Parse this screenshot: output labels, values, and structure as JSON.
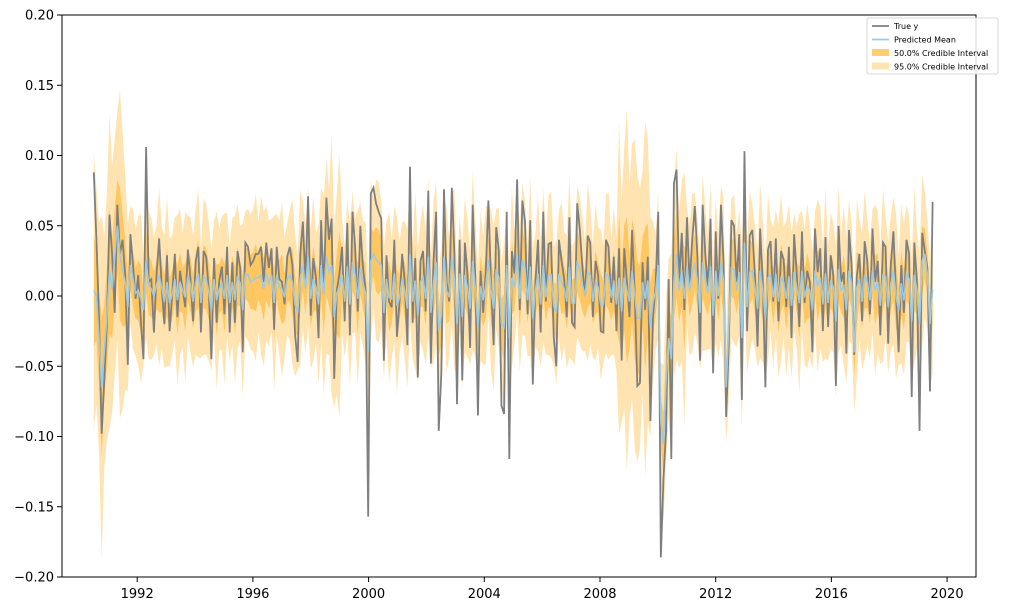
{
  "chart_data": {
    "type": "line",
    "title": "",
    "xlabel": "",
    "ylabel": "",
    "xlim": [
      1989.4,
      2021.0
    ],
    "ylim": [
      -0.2,
      0.2
    ],
    "x_ticks": [
      1992,
      1996,
      2000,
      2004,
      2008,
      2012,
      2016,
      2020
    ],
    "x_tick_labels": [
      "1992",
      "1996",
      "2000",
      "2004",
      "2008",
      "2012",
      "2016",
      "2020"
    ],
    "y_ticks": [
      -0.2,
      -0.15,
      -0.1,
      -0.05,
      0.0,
      0.05,
      0.1,
      0.15,
      0.2
    ],
    "y_tick_labels": [
      "−0.20",
      "−0.15",
      "−0.10",
      "−0.05",
      "0.00",
      "0.05",
      "0.10",
      "0.15",
      "0.20"
    ],
    "grid": false,
    "legend_position": "top-right",
    "legend": [
      {
        "label": "True y",
        "kind": "line",
        "color": "#7f7f7f"
      },
      {
        "label": "Predicted Mean",
        "kind": "line",
        "color": "#9ecae1"
      },
      {
        "label": "50.0% Credible Interval",
        "kind": "patch",
        "color": "#ffa500",
        "opacity": 0.55
      },
      {
        "label": "95.0% Credible Interval",
        "kind": "patch",
        "color": "#ffa500",
        "opacity": 0.3
      }
    ],
    "x_start": 1990.5,
    "x_end": 2019.5,
    "series": [
      {
        "name": "True y",
        "role": "true",
        "color": "#7f7f7f",
        "values": [
          0.088,
          0.04,
          -0.015,
          -0.098,
          -0.06,
          -0.02,
          0.058,
          0.03,
          -0.012,
          0.065,
          0.03,
          0.04,
          0.015,
          -0.049,
          0.044,
          0.022,
          -0.002,
          0.015,
          -0.018,
          -0.045,
          0.106,
          0.01,
          0.012,
          -0.026,
          0.015,
          0.041,
          0.006,
          -0.02,
          0.029,
          -0.025,
          0.001,
          0.03,
          -0.015,
          0.018,
          0.005,
          -0.008,
          0.033,
          0.012,
          -0.018,
          0.025,
          0.035,
          -0.026,
          0.032,
          0.028,
          0.004,
          -0.045,
          0.027,
          -0.019,
          0.011,
          0.021,
          -0.013,
          0.035,
          -0.026,
          0.024,
          -0.019,
          0.032,
          0.02,
          -0.04,
          0.038,
          0.035,
          0.022,
          0.025,
          0.03,
          0.03,
          0.035,
          0.01,
          0.038,
          0.02,
          0.034,
          -0.024,
          0.035,
          0.012,
          0.01,
          -0.006,
          0.028,
          0.035,
          0.022,
          -0.027,
          -0.047,
          0.03,
          0.053,
          0.01,
          0.071,
          -0.014,
          0.027,
          0.013,
          -0.03,
          0.054,
          0.002,
          0.07,
          0.04,
          0.055,
          -0.059,
          0.004,
          0.016,
          0.035,
          -0.018,
          0.052,
          -0.028,
          0.06,
          0.035,
          -0.011,
          0.05,
          0.02,
          0.005,
          -0.157,
          0.073,
          0.077,
          0.066,
          0.06,
          0.055,
          -0.046,
          0.029,
          -0.004,
          -0.008,
          0.04,
          -0.029,
          -0.004,
          0.03,
          0.01,
          -0.035,
          0.092,
          -0.019,
          0.027,
          -0.058,
          0.025,
          0.032,
          -0.011,
          0.075,
          -0.048,
          0.025,
          0.06,
          -0.096,
          -0.055,
          0.076,
          0.01,
          -0.004,
          0.077,
          0.03,
          -0.077,
          0.04,
          -0.06,
          0.038,
          0.015,
          -0.037,
          0.065,
          0.012,
          -0.085,
          0.018,
          -0.012,
          0.017,
          0.068,
          0.01,
          -0.035,
          0.049,
          0.032,
          -0.078,
          -0.084,
          0.06,
          -0.116,
          0.032,
          0.016,
          0.083,
          -0.01,
          0.068,
          0.053,
          -0.013,
          0.054,
          -0.063,
          0.01,
          0.04,
          -0.026,
          0.06,
          -0.004,
          0.037,
          0.038,
          -0.029,
          -0.05,
          0.04,
          0.025,
          0.012,
          -0.015,
          0.056,
          -0.019,
          -0.022,
          0.066,
          0.047,
          0.02,
          0.0,
          0.043,
          0.038,
          -0.015,
          0.025,
          0.015,
          -0.025,
          -0.026,
          0.04,
          0.035,
          -0.005,
          0.028,
          -0.025,
          0.034,
          -0.046,
          0.034,
          0.01,
          -0.015,
          0.047,
          0.002,
          -0.064,
          -0.062,
          0.024,
          -0.01,
          0.028,
          -0.089,
          -0.015,
          0.008,
          0.06,
          -0.186,
          -0.13,
          -0.096,
          0.012,
          -0.116,
          0.08,
          0.09,
          0.01,
          0.045,
          -0.01,
          0.056,
          0.009,
          0.04,
          0.064,
          0.028,
          -0.046,
          0.065,
          0.03,
          0.005,
          0.055,
          -0.055,
          0.046,
          -0.002,
          0.065,
          0.024,
          -0.086,
          -0.035,
          0.054,
          0.05,
          0.01,
          0.044,
          -0.074,
          0.103,
          -0.025,
          0.043,
          0.047,
          0.015,
          -0.036,
          0.048,
          0.01,
          -0.065,
          0.033,
          0.039,
          -0.004,
          0.041,
          -0.018,
          0.032,
          0.026,
          -0.008,
          0.035,
          -0.03,
          0.044,
          0.016,
          -0.022,
          0.046,
          -0.005,
          0.018,
          0.01,
          -0.04,
          0.048,
          0.017,
          0.034,
          -0.025,
          0.042,
          -0.022,
          0.029,
          0.014,
          -0.064,
          0.05,
          0.01,
          0.017,
          -0.041,
          0.047,
          0.022,
          -0.042,
          0.014,
          0.03,
          -0.018,
          0.039,
          0.025,
          -0.013,
          0.048,
          0.01,
          0.025,
          -0.028,
          0.038,
          0.035,
          -0.034,
          0.022,
          0.046,
          0.0,
          -0.04,
          0.022,
          -0.012,
          0.04,
          0.03,
          -0.072,
          0.038,
          0.01,
          -0.096,
          0.045,
          0.032,
          0.02,
          -0.068,
          0.067
        ]
      },
      {
        "name": "Predicted Mean",
        "role": "mean",
        "color": "#9ecae1",
        "values": [
          0.004,
          0.0,
          -0.03,
          -0.065,
          -0.04,
          -0.015,
          0.018,
          0.005,
          0.028,
          0.05,
          0.03,
          0.018,
          0.01,
          -0.008,
          0.022,
          0.012,
          0.002,
          0.004,
          -0.002,
          -0.01,
          0.025,
          0.008,
          0.005,
          0.0,
          0.008,
          0.014,
          0.006,
          -0.004,
          0.01,
          -0.005,
          0.001,
          0.012,
          -0.003,
          0.01,
          0.004,
          -0.001,
          0.014,
          0.008,
          -0.004,
          0.01,
          0.016,
          -0.005,
          0.014,
          0.012,
          0.003,
          -0.01,
          0.012,
          -0.003,
          0.005,
          0.009,
          -0.002,
          0.015,
          -0.005,
          0.01,
          -0.003,
          0.014,
          0.009,
          -0.01,
          0.016,
          0.015,
          0.01,
          0.011,
          0.013,
          0.013,
          0.015,
          0.005,
          0.016,
          0.009,
          0.015,
          -0.005,
          0.015,
          0.006,
          0.005,
          -0.001,
          0.012,
          0.015,
          0.01,
          -0.006,
          -0.012,
          0.013,
          0.022,
          0.005,
          0.028,
          -0.002,
          0.012,
          0.006,
          -0.006,
          0.022,
          0.001,
          0.028,
          0.017,
          0.022,
          -0.015,
          0.002,
          0.007,
          0.015,
          -0.004,
          0.021,
          -0.006,
          0.024,
          0.015,
          -0.002,
          0.02,
          0.009,
          0.002,
          -0.04,
          0.025,
          0.03,
          0.026,
          0.024,
          0.022,
          -0.012,
          0.012,
          -0.001,
          -0.002,
          0.016,
          -0.007,
          -0.001,
          0.012,
          0.004,
          -0.009,
          0.03,
          -0.004,
          0.011,
          -0.014,
          0.01,
          0.013,
          -0.002,
          0.028,
          -0.012,
          0.01,
          0.024,
          -0.025,
          -0.014,
          0.028,
          0.004,
          -0.001,
          0.028,
          0.012,
          -0.02,
          0.016,
          -0.015,
          0.015,
          0.006,
          -0.009,
          0.025,
          0.005,
          -0.022,
          0.007,
          -0.003,
          0.007,
          0.026,
          0.004,
          -0.009,
          0.019,
          0.013,
          -0.02,
          -0.022,
          0.022,
          -0.03,
          0.013,
          0.006,
          0.03,
          -0.002,
          0.026,
          0.02,
          -0.003,
          0.021,
          -0.016,
          0.004,
          0.016,
          -0.006,
          0.022,
          -0.001,
          0.015,
          0.015,
          -0.007,
          -0.012,
          0.016,
          0.01,
          0.005,
          -0.004,
          0.021,
          -0.005,
          -0.005,
          0.025,
          0.018,
          0.008,
          0.0,
          0.017,
          0.015,
          -0.004,
          0.01,
          0.006,
          -0.006,
          -0.006,
          0.016,
          0.014,
          -0.001,
          0.011,
          -0.006,
          0.013,
          -0.011,
          0.013,
          0.004,
          -0.004,
          0.018,
          0.001,
          -0.016,
          -0.016,
          0.01,
          -0.002,
          0.011,
          -0.022,
          -0.004,
          0.003,
          0.022,
          -0.09,
          -0.105,
          -0.06,
          -0.03,
          -0.045,
          0.01,
          0.03,
          0.004,
          0.018,
          -0.002,
          0.021,
          0.004,
          0.016,
          0.024,
          0.011,
          -0.012,
          0.024,
          0.012,
          0.002,
          0.021,
          -0.014,
          0.018,
          0.0,
          0.024,
          0.01,
          -0.065,
          -0.02,
          0.02,
          0.019,
          0.004,
          0.017,
          -0.03,
          0.038,
          -0.008,
          0.017,
          0.018,
          0.006,
          -0.009,
          0.018,
          0.004,
          -0.016,
          0.013,
          0.015,
          -0.001,
          0.016,
          -0.004,
          0.013,
          0.01,
          -0.002,
          0.014,
          -0.007,
          0.017,
          0.006,
          -0.005,
          0.018,
          -0.001,
          0.007,
          0.004,
          -0.01,
          0.018,
          0.007,
          0.013,
          -0.006,
          0.016,
          -0.005,
          0.011,
          0.006,
          -0.018,
          0.019,
          0.004,
          0.007,
          -0.01,
          0.018,
          0.009,
          -0.04,
          0.006,
          0.012,
          -0.004,
          0.015,
          0.01,
          -0.003,
          0.018,
          0.004,
          0.01,
          -0.007,
          0.015,
          0.014,
          -0.008,
          0.009,
          0.018,
          0.0,
          -0.01,
          0.009,
          -0.003,
          0.016,
          0.012,
          -0.018,
          0.015,
          0.004,
          -0.02,
          0.025,
          0.03,
          0.015,
          -0.02,
          0.005
        ]
      }
    ],
    "interval_model": {
      "half_width_50": 0.021,
      "half_width_95": 0.052,
      "shock_widening": [
        {
          "from": 1990.5,
          "to": 1991.6,
          "factor": 1.9
        },
        {
          "from": 1998.4,
          "to": 1999.0,
          "factor": 1.5
        },
        {
          "from": 2008.6,
          "to": 2009.8,
          "factor": 2.0
        },
        {
          "from": 2010.3,
          "to": 2011.0,
          "factor": 1.4
        }
      ]
    },
    "colors": {
      "true": "#7f7f7f",
      "mean": "#9ecae1",
      "interval": "#ffa500"
    }
  }
}
